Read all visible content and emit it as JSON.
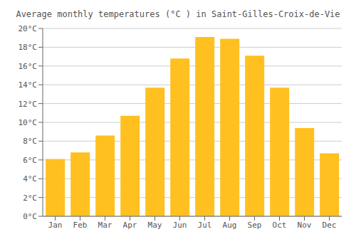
{
  "chart_data": {
    "type": "bar",
    "title": "Average monthly temperatures (°C ) in Saint-Gilles-Croix-de-Vie",
    "categories": [
      "Jan",
      "Feb",
      "Mar",
      "Apr",
      "May",
      "Jun",
      "Jul",
      "Aug",
      "Sep",
      "Oct",
      "Nov",
      "Dec"
    ],
    "values": [
      6.1,
      6.8,
      8.6,
      10.7,
      13.7,
      16.8,
      19.1,
      18.9,
      17.1,
      13.7,
      9.4,
      6.7
    ],
    "color": "#FFC020",
    "ylim": [
      0,
      20
    ],
    "yticks": [
      {
        "value": 0,
        "label": "0°C"
      },
      {
        "value": 2,
        "label": "2°C"
      },
      {
        "value": 4,
        "label": "4°C"
      },
      {
        "value": 6,
        "label": "6°C"
      },
      {
        "value": 8,
        "label": "8°C"
      },
      {
        "value": 10,
        "label": "10°C"
      },
      {
        "value": 12,
        "label": "12°C"
      },
      {
        "value": 14,
        "label": "14°C"
      },
      {
        "value": 16,
        "label": "16°C"
      },
      {
        "value": 18,
        "label": "18°C"
      },
      {
        "value": 20,
        "label": "20°C"
      }
    ],
    "grid": true
  }
}
